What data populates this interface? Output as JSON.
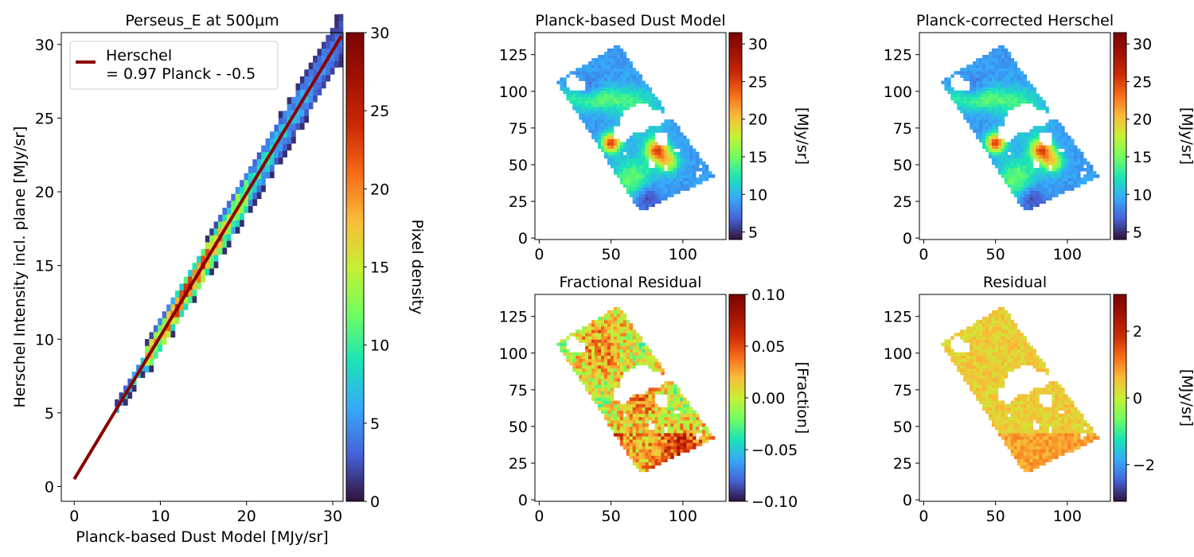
{
  "figure": {
    "scatter": {
      "title": "Perseus_E at 500μm",
      "xlabel": "Planck-based Dust Model [MJy/sr]",
      "ylabel": "Herschel Intensity incl. plane [MJy/sr]",
      "colorbar_label": "Pixel density",
      "legend_line1": "Herschel",
      "legend_line2": "= 0.97 Planck - -0.5"
    },
    "map_planck": {
      "title": "Planck-based Dust Model",
      "colorbar_label": "[MJy/sr]"
    },
    "map_herschel": {
      "title": "Planck-corrected Herschel",
      "colorbar_label": "[MJy/sr]"
    },
    "map_fracres": {
      "title": "Fractional Residual",
      "colorbar_label": "[Fraction]"
    },
    "map_residual": {
      "title": "Residual",
      "colorbar_label": "[MJy/sr]"
    }
  },
  "chart_data": [
    {
      "type": "heatmap",
      "title": "Perseus_E at 500μm",
      "xlabel": "Planck-based Dust Model [MJy/sr]",
      "ylabel": "Herschel Intensity incl. plane [MJy/sr]",
      "xlim": [
        -1.5,
        31.2
      ],
      "ylim": [
        -1,
        30.8
      ],
      "xticks": [
        0,
        10,
        20,
        30
      ],
      "yticks": [
        0,
        5,
        10,
        15,
        20,
        25,
        30
      ],
      "colorbar": {
        "label": "Pixel density",
        "range": [
          0,
          30
        ],
        "ticks": [
          0,
          5,
          10,
          15,
          20,
          25,
          30
        ],
        "colormap": "turbo"
      },
      "fit_line": {
        "label": "Herschel\n= 0.97 Planck - -0.5",
        "slope": 0.97,
        "intercept": 0.5,
        "color": "#8b0000"
      },
      "density_ridge": {
        "x_range": [
          4.7,
          31
        ],
        "relation": "y = 0.97x + 0.5",
        "peak_density_x": [
          10,
          16
        ]
      },
      "legend_position": "upper-left"
    },
    {
      "type": "heatmap",
      "title": "Planck-based Dust Model",
      "xlim": [
        -3,
        130
      ],
      "ylim": [
        -1,
        140
      ],
      "xticks": [
        0,
        50,
        100
      ],
      "yticks": [
        0,
        25,
        50,
        75,
        100,
        125
      ],
      "colorbar": {
        "label": "[MJy/sr]",
        "range": [
          4,
          31.5
        ],
        "ticks": [
          5,
          10,
          15,
          20,
          25,
          30
        ],
        "colormap": "turbo"
      }
    },
    {
      "type": "heatmap",
      "title": "Planck-corrected Herschel",
      "xlim": [
        -3,
        130
      ],
      "ylim": [
        -1,
        140
      ],
      "xticks": [
        0,
        50,
        100
      ],
      "yticks": [
        0,
        25,
        50,
        75,
        100,
        125
      ],
      "colorbar": {
        "label": "[MJy/sr]",
        "range": [
          4,
          31.5
        ],
        "ticks": [
          5,
          10,
          15,
          20,
          25,
          30
        ],
        "colormap": "turbo"
      }
    },
    {
      "type": "heatmap",
      "title": "Fractional Residual",
      "xlim": [
        -3,
        130
      ],
      "ylim": [
        -1,
        140
      ],
      "xticks": [
        0,
        50,
        100
      ],
      "yticks": [
        0,
        25,
        50,
        75,
        100,
        125
      ],
      "colorbar": {
        "label": "[Fraction]",
        "range": [
          -0.1,
          0.1
        ],
        "ticks": [
          -0.1,
          -0.05,
          0.0,
          0.05,
          0.1
        ],
        "tick_labels": [
          "−0.10",
          "−0.05",
          "0.00",
          "0.05",
          "0.10"
        ],
        "colormap": "turbo"
      }
    },
    {
      "type": "heatmap",
      "title": "Residual",
      "xlim": [
        -3,
        130
      ],
      "ylim": [
        -1,
        140
      ],
      "xticks": [
        0,
        50,
        100
      ],
      "yticks": [
        0,
        25,
        50,
        75,
        100,
        125
      ],
      "colorbar": {
        "label": "[MJy/sr]",
        "range": [
          -3.1,
          3.1
        ],
        "ticks": [
          -2,
          0,
          2
        ],
        "tick_labels": [
          "−2",
          "0",
          "2"
        ],
        "colormap": "turbo"
      }
    }
  ]
}
